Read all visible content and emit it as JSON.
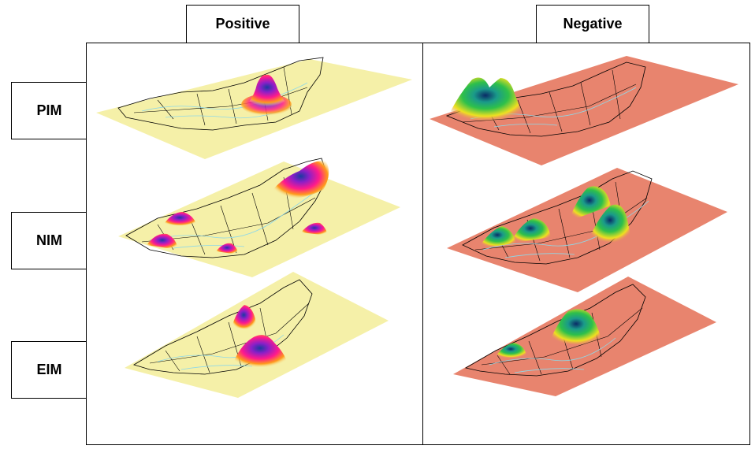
{
  "columns": {
    "positive": "Positive",
    "negative": "Negative"
  },
  "rows": {
    "pim": "PIM",
    "nim": "NIM",
    "eim": "EIM"
  },
  "colors": {
    "positive_plane": "#f5f0a8",
    "negative_plane": "#e8846e",
    "border_lines": "#000000",
    "river_lines": "#8ed8e8"
  }
}
